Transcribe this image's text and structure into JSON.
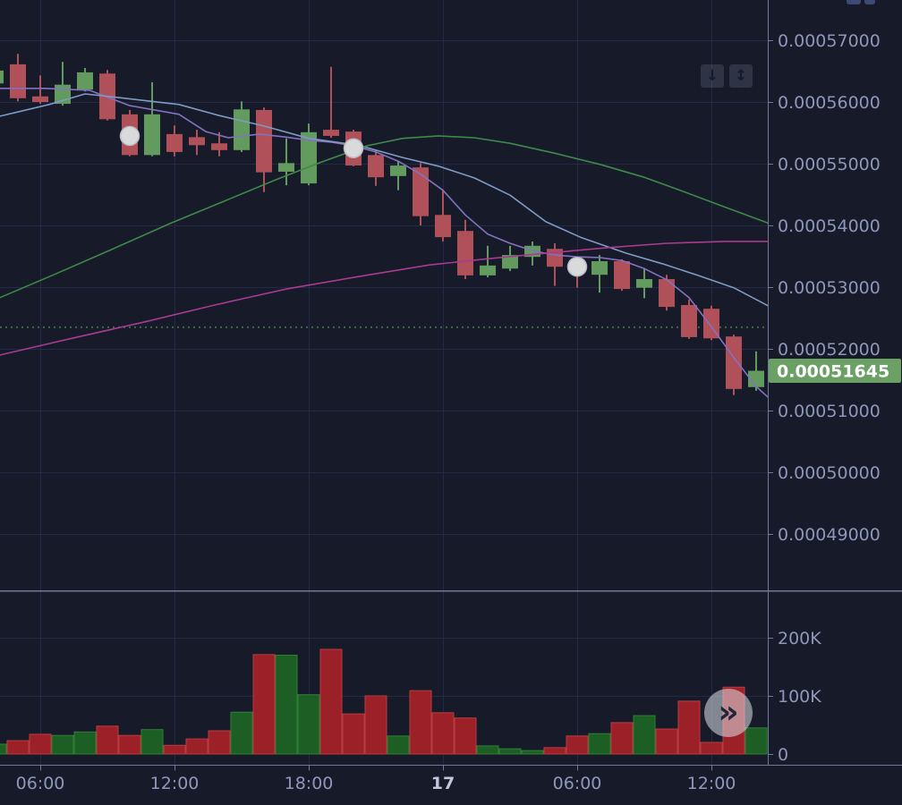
{
  "colors": {
    "background": "#161a29",
    "grid": "#232946",
    "axis_line": "#6f7896",
    "axis_text": "#8f97ba",
    "axis_text_bold": "#c2c7dc",
    "candle_up": "#639a5d",
    "candle_down": "#b05058",
    "volume_up": "#1d5e24",
    "volume_up_border": "#2f8036",
    "volume_down": "#9c2027",
    "volume_down_border": "#b93c42",
    "ma_fast_violet": "#8471c0",
    "ma_mid_blue": "#7d9bc4",
    "ma_slow_green": "#3e8b48",
    "ma_slow_magenta": "#a93b92",
    "baseline_dotted": "#3c6b40",
    "last_price_bg": "#6ba064",
    "last_price_text": "#ffffff",
    "marker_fill": "#d8dadc",
    "marker_stroke": "#b9bcc2"
  },
  "toolbar": {
    "pan_down_icon": "↓",
    "auto_fit_icon": "↕"
  },
  "scroll_button": {
    "icon": "»"
  },
  "price_axis": {
    "last_price": 0.00051645,
    "last_price_label": "0.00051645",
    "ticks": [
      {
        "label": "0.00057000",
        "value": 0.00057
      },
      {
        "label": "0.00056000",
        "value": 0.00056
      },
      {
        "label": "0.00055000",
        "value": 0.00055
      },
      {
        "label": "0.00054000",
        "value": 0.00054
      },
      {
        "label": "0.00053000",
        "value": 0.00053
      },
      {
        "label": "0.00052000",
        "value": 0.00052
      },
      {
        "label": "0.00051000",
        "value": 0.00051
      },
      {
        "label": "0.00050000",
        "value": 0.0005
      },
      {
        "label": "0.00049000",
        "value": 0.00049
      }
    ]
  },
  "volume_axis": {
    "ticks": [
      {
        "label": "200K",
        "value": 200000
      },
      {
        "label": "100K",
        "value": 100000
      },
      {
        "label": "0",
        "value": 0
      }
    ]
  },
  "time_axis": {
    "ticks": [
      {
        "label": "06:00",
        "index": 2,
        "bold": false
      },
      {
        "label": "12:00",
        "index": 8,
        "bold": false
      },
      {
        "label": "18:00",
        "index": 14,
        "bold": false
      },
      {
        "label": "17",
        "index": 20,
        "bold": true
      },
      {
        "label": "06:00",
        "index": 26,
        "bold": false
      },
      {
        "label": "12:00",
        "index": 32,
        "bold": false
      }
    ]
  },
  "chart_data": {
    "type": "candlestick+volume",
    "candle_interval": "1h",
    "price_ylim": [
      0.00048087,
      0.00057652
    ],
    "volume_ylim": [
      0,
      280000
    ],
    "baseline": {
      "price": 0.0005235,
      "style": "dotted"
    },
    "candles": [
      {
        "t": "04:00",
        "o": 0.000563,
        "h": 0.0005659,
        "l": 0.0005603,
        "c": 0.0005651,
        "v": 17000
      },
      {
        "t": "05:00",
        "o": 0.0005661,
        "h": 0.0005678,
        "l": 0.0005601,
        "c": 0.0005606,
        "v": 23000
      },
      {
        "t": "06:00",
        "o": 0.0005609,
        "h": 0.0005643,
        "l": 0.0005597,
        "c": 0.00056,
        "v": 34000
      },
      {
        "t": "07:00",
        "o": 0.0005597,
        "h": 0.0005665,
        "l": 0.0005594,
        "c": 0.0005628,
        "v": 32000
      },
      {
        "t": "08:00",
        "o": 0.000562,
        "h": 0.0005655,
        "l": 0.0005617,
        "c": 0.0005648,
        "v": 38000
      },
      {
        "t": "09:00",
        "o": 0.0005646,
        "h": 0.0005652,
        "l": 0.000557,
        "c": 0.0005572,
        "v": 48000
      },
      {
        "t": "10:00",
        "o": 0.000558,
        "h": 0.0005587,
        "l": 0.0005512,
        "c": 0.0005514,
        "v": 32000
      },
      {
        "t": "11:00",
        "o": 0.0005514,
        "h": 0.0005632,
        "l": 0.0005512,
        "c": 0.000558,
        "v": 42000
      },
      {
        "t": "12:00",
        "o": 0.0005548,
        "h": 0.0005562,
        "l": 0.0005512,
        "c": 0.0005519,
        "v": 15000
      },
      {
        "t": "13:00",
        "o": 0.0005543,
        "h": 0.0005555,
        "l": 0.0005514,
        "c": 0.000553,
        "v": 26000
      },
      {
        "t": "14:00",
        "o": 0.0005533,
        "h": 0.0005551,
        "l": 0.0005512,
        "c": 0.0005522,
        "v": 40000
      },
      {
        "t": "15:00",
        "o": 0.0005522,
        "h": 0.0005601,
        "l": 0.0005519,
        "c": 0.0005588,
        "v": 72000
      },
      {
        "t": "16:00",
        "o": 0.0005587,
        "h": 0.0005591,
        "l": 0.0005454,
        "c": 0.0005486,
        "v": 171000
      },
      {
        "t": "17:00",
        "o": 0.0005487,
        "h": 0.0005541,
        "l": 0.0005465,
        "c": 0.0005501,
        "v": 170000
      },
      {
        "t": "18:00",
        "o": 0.0005468,
        "h": 0.0005565,
        "l": 0.0005465,
        "c": 0.0005551,
        "v": 102000
      },
      {
        "t": "19:00",
        "o": 0.0005555,
        "h": 0.0005657,
        "l": 0.0005542,
        "c": 0.0005545,
        "v": 180000
      },
      {
        "t": "20:00",
        "o": 0.0005552,
        "h": 0.0005555,
        "l": 0.0005496,
        "c": 0.0005497,
        "v": 69000
      },
      {
        "t": "21:00",
        "o": 0.0005514,
        "h": 0.0005522,
        "l": 0.0005464,
        "c": 0.0005478,
        "v": 100000
      },
      {
        "t": "22:00",
        "o": 0.000548,
        "h": 0.0005504,
        "l": 0.0005457,
        "c": 0.0005497,
        "v": 31000
      },
      {
        "t": "23:00",
        "o": 0.0005494,
        "h": 0.0005501,
        "l": 0.00054,
        "c": 0.0005415,
        "v": 109000
      },
      {
        "t": "00:00",
        "o": 0.0005417,
        "h": 0.0005458,
        "l": 0.0005374,
        "c": 0.0005381,
        "v": 71000
      },
      {
        "t": "01:00",
        "o": 0.0005391,
        "h": 0.0005409,
        "l": 0.0005313,
        "c": 0.0005319,
        "v": 62000
      },
      {
        "t": "02:00",
        "o": 0.0005319,
        "h": 0.0005367,
        "l": 0.0005316,
        "c": 0.0005335,
        "v": 14000
      },
      {
        "t": "03:00",
        "o": 0.000533,
        "h": 0.0005367,
        "l": 0.0005326,
        "c": 0.0005352,
        "v": 9000
      },
      {
        "t": "04:00",
        "o": 0.0005349,
        "h": 0.0005374,
        "l": 0.0005335,
        "c": 0.0005367,
        "v": 6000
      },
      {
        "t": "05:00",
        "o": 0.0005362,
        "h": 0.0005371,
        "l": 0.0005302,
        "c": 0.0005333,
        "v": 11000
      },
      {
        "t": "06:00",
        "o": 0.0005344,
        "h": 0.0005348,
        "l": 0.0005299,
        "c": 0.0005323,
        "v": 31000
      },
      {
        "t": "07:00",
        "o": 0.000532,
        "h": 0.0005352,
        "l": 0.0005291,
        "c": 0.0005342,
        "v": 35000
      },
      {
        "t": "08:00",
        "o": 0.0005342,
        "h": 0.0005345,
        "l": 0.0005294,
        "c": 0.0005297,
        "v": 54000
      },
      {
        "t": "09:00",
        "o": 0.0005299,
        "h": 0.000533,
        "l": 0.0005282,
        "c": 0.0005313,
        "v": 66000
      },
      {
        "t": "10:00",
        "o": 0.0005313,
        "h": 0.000532,
        "l": 0.0005262,
        "c": 0.0005268,
        "v": 43000
      },
      {
        "t": "11:00",
        "o": 0.0005271,
        "h": 0.000528,
        "l": 0.0005216,
        "c": 0.0005219,
        "v": 91000
      },
      {
        "t": "12:00",
        "o": 0.0005265,
        "h": 0.000527,
        "l": 0.0005214,
        "c": 0.0005217,
        "v": 20000
      },
      {
        "t": "13:00",
        "o": 0.000522,
        "h": 0.0005223,
        "l": 0.0005125,
        "c": 0.0005135,
        "v": 115000
      },
      {
        "t": "14:00",
        "o": 0.0005138,
        "h": 0.0005196,
        "l": 0.0005132,
        "c": 0.00051645,
        "v": 45000
      }
    ],
    "markers": [
      {
        "candle_index": 6,
        "price": 0.0005545
      },
      {
        "candle_index": 16,
        "price": 0.0005525
      },
      {
        "candle_index": 26,
        "price": 0.0005333
      }
    ],
    "indicators": [
      {
        "name": "ma-violet-fast",
        "color_key": "ma_fast_violet",
        "points": [
          [
            0.2,
            0.0005622
          ],
          [
            2.2,
            0.0005622
          ],
          [
            4.2,
            0.0005619
          ],
          [
            6,
            0.0005594
          ],
          [
            8.2,
            0.000558
          ],
          [
            9.4,
            0.0005552
          ],
          [
            10.4,
            0.0005542
          ],
          [
            11.8,
            0.0005548
          ],
          [
            13,
            0.0005543
          ],
          [
            14,
            0.0005538
          ],
          [
            15,
            0.0005535
          ],
          [
            16,
            0.0005529
          ],
          [
            17,
            0.0005519
          ],
          [
            18,
            0.0005504
          ],
          [
            19,
            0.0005483
          ],
          [
            20,
            0.0005457
          ],
          [
            21,
            0.0005417
          ],
          [
            22,
            0.0005386
          ],
          [
            23,
            0.0005371
          ],
          [
            24,
            0.0005359
          ],
          [
            25,
            0.0005352
          ],
          [
            26,
            0.0005349
          ],
          [
            27,
            0.0005348
          ],
          [
            28,
            0.0005343
          ],
          [
            29,
            0.000533
          ],
          [
            30,
            0.0005312
          ],
          [
            31,
            0.0005283
          ],
          [
            32,
            0.0005236
          ],
          [
            33,
            0.0005186
          ],
          [
            34,
            0.0005139
          ],
          [
            34.52,
            0.0005122
          ]
        ]
      },
      {
        "name": "ma-blue-mid",
        "color_key": "ma_mid_blue",
        "points": [
          [
            0.2,
            0.0005577
          ],
          [
            2.4,
            0.0005596
          ],
          [
            4,
            0.0005613
          ],
          [
            5.8,
            0.0005606
          ],
          [
            8.2,
            0.0005596
          ],
          [
            10,
            0.0005578
          ],
          [
            12,
            0.0005561
          ],
          [
            14,
            0.0005541
          ],
          [
            16.2,
            0.000553
          ],
          [
            18.2,
            0.000551
          ],
          [
            19.8,
            0.0005496
          ],
          [
            21.4,
            0.0005477
          ],
          [
            23,
            0.0005449
          ],
          [
            24.6,
            0.0005406
          ],
          [
            26.2,
            0.000538
          ],
          [
            28.2,
            0.0005355
          ],
          [
            29.8,
            0.0005338
          ],
          [
            31.4,
            0.0005319
          ],
          [
            33,
            0.0005299
          ],
          [
            34.52,
            0.000527
          ]
        ]
      },
      {
        "name": "ma-green-slow",
        "color_key": "ma_slow_green",
        "points": [
          [
            0.2,
            0.0005283
          ],
          [
            2.6,
            0.000532
          ],
          [
            5,
            0.0005358
          ],
          [
            7.8,
            0.0005403
          ],
          [
            10.2,
            0.0005439
          ],
          [
            12.6,
            0.0005475
          ],
          [
            14.6,
            0.0005503
          ],
          [
            16.6,
            0.0005529
          ],
          [
            18.2,
            0.0005541
          ],
          [
            19.8,
            0.0005545
          ],
          [
            21.4,
            0.0005542
          ],
          [
            23,
            0.0005533
          ],
          [
            25,
            0.0005517
          ],
          [
            27,
            0.0005499
          ],
          [
            29,
            0.0005478
          ],
          [
            30.6,
            0.0005457
          ],
          [
            32.2,
            0.0005435
          ],
          [
            34.52,
            0.0005404
          ]
        ]
      },
      {
        "name": "ma-magenta-slow",
        "color_key": "ma_slow_magenta",
        "points": [
          [
            0.2,
            0.000519
          ],
          [
            3.4,
            0.0005217
          ],
          [
            6.6,
            0.0005243
          ],
          [
            9.8,
            0.0005271
          ],
          [
            13,
            0.0005297
          ],
          [
            16.2,
            0.0005317
          ],
          [
            19.4,
            0.0005336
          ],
          [
            22,
            0.0005346
          ],
          [
            24.6,
            0.0005355
          ],
          [
            27.4,
            0.0005364
          ],
          [
            30,
            0.0005371
          ],
          [
            32.6,
            0.0005374
          ],
          [
            34.52,
            0.0005374
          ]
        ]
      }
    ]
  }
}
